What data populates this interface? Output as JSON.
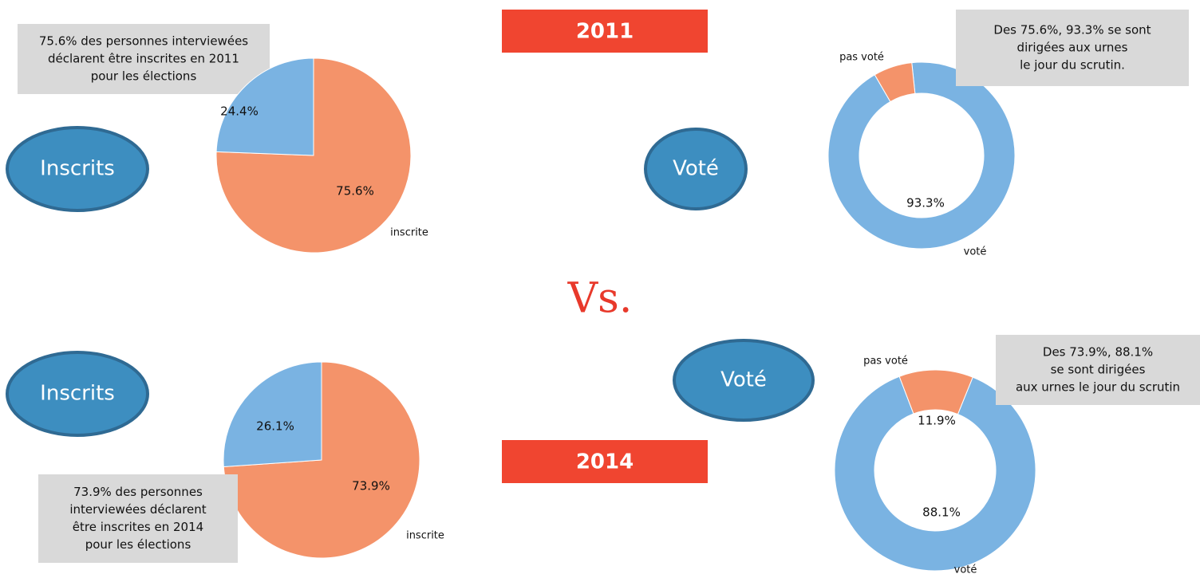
{
  "banners": [
    "2011",
    "2014"
  ],
  "vs": "Vs.",
  "chart_data": [
    {
      "type": "pie",
      "label": "Inscrits",
      "annotation": [
        "75.6% des personnes interviewées",
        "déclarent être inscrites en 2011",
        "pour les élections"
      ],
      "categories": [
        "inscrite",
        null
      ],
      "values": [
        75.6,
        24.4
      ],
      "value_labels": [
        "75.6%",
        "24.4%"
      ],
      "colors": [
        "#f4936a",
        "#7ab3e2"
      ]
    },
    {
      "type": "donut",
      "label": "Voté",
      "annotation": [
        "Des 75.6%, 93.3% se sont",
        "dirigées aux urnes",
        "le jour du scrutin."
      ],
      "categories": [
        "voté",
        "pas voté"
      ],
      "values": [
        93.3,
        6.7
      ],
      "value_labels": [
        "93.3%",
        null
      ],
      "colors": [
        "#7ab3e2",
        "#f4936a"
      ]
    },
    {
      "type": "pie",
      "label": "Inscrits",
      "annotation": [
        "73.9% des personnes",
        "interviewées déclarent",
        "être inscrites en 2014",
        "pour les élections"
      ],
      "categories": [
        "inscrite",
        null
      ],
      "values": [
        73.9,
        26.1
      ],
      "value_labels": [
        "73.9%",
        "26.1%"
      ],
      "colors": [
        "#f4936a",
        "#7ab3e2"
      ]
    },
    {
      "type": "donut",
      "label": "Voté",
      "annotation": [
        "Des 73.9%, 88.1%",
        "se sont dirigées",
        "aux urnes le jour du scrutin"
      ],
      "categories": [
        "voté",
        "pas voté"
      ],
      "values": [
        88.1,
        11.9
      ],
      "value_labels": [
        "88.1%",
        "11.9%"
      ],
      "colors": [
        "#7ab3e2",
        "#f4936a"
      ]
    }
  ]
}
